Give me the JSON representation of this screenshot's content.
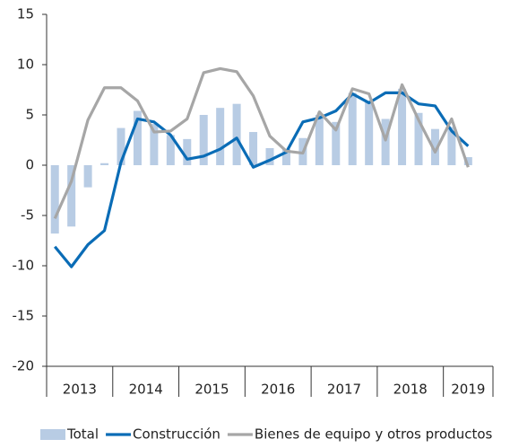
{
  "chart_data": {
    "type": "bar-line",
    "categories": [
      null,
      null,
      null,
      null,
      null,
      null,
      null,
      null,
      null,
      null,
      null,
      null,
      null,
      null,
      null,
      null,
      null,
      null,
      null,
      null,
      null,
      null,
      null,
      null,
      null,
      null
    ],
    "years": [
      "2013",
      "2014",
      "2015",
      "2016",
      "2017",
      "2018",
      "2019"
    ],
    "series": [
      {
        "name": "Total",
        "kind": "bar",
        "color": "#b8cce4",
        "values": [
          -6.8,
          -6.1,
          -2.2,
          0.2,
          3.7,
          5.4,
          4.1,
          3.0,
          2.6,
          5.0,
          5.7,
          6.1,
          3.3,
          1.7,
          1.6,
          2.7,
          5.0,
          4.3,
          7.2,
          6.4,
          4.6,
          7.6,
          5.2,
          3.6,
          3.8,
          0.8
        ]
      },
      {
        "name": "Construcción",
        "kind": "line",
        "color": "#0a6cb6",
        "values": [
          -8.1,
          -10.1,
          -7.9,
          -6.5,
          0.3,
          4.6,
          4.3,
          3.0,
          0.6,
          0.9,
          1.6,
          2.7,
          -0.2,
          0.5,
          1.3,
          4.3,
          4.7,
          5.4,
          7.1,
          6.2,
          7.2,
          7.2,
          6.1,
          5.9,
          3.4,
          1.9
        ]
      },
      {
        "name": "Bienes de equipo y otros productos",
        "kind": "line",
        "color": "#a6a6a6",
        "values": [
          -5.3,
          -1.6,
          4.5,
          7.7,
          7.7,
          6.4,
          3.3,
          3.4,
          4.6,
          9.2,
          9.6,
          9.3,
          6.9,
          2.9,
          1.4,
          1.2,
          5.3,
          3.5,
          7.6,
          7.1,
          2.5,
          8.0,
          4.5,
          1.3,
          4.6,
          -0.2
        ]
      }
    ],
    "ylim": [
      -20,
      15
    ],
    "yticks": [
      -20,
      -15,
      -10,
      -5,
      0,
      5,
      10,
      15
    ]
  }
}
